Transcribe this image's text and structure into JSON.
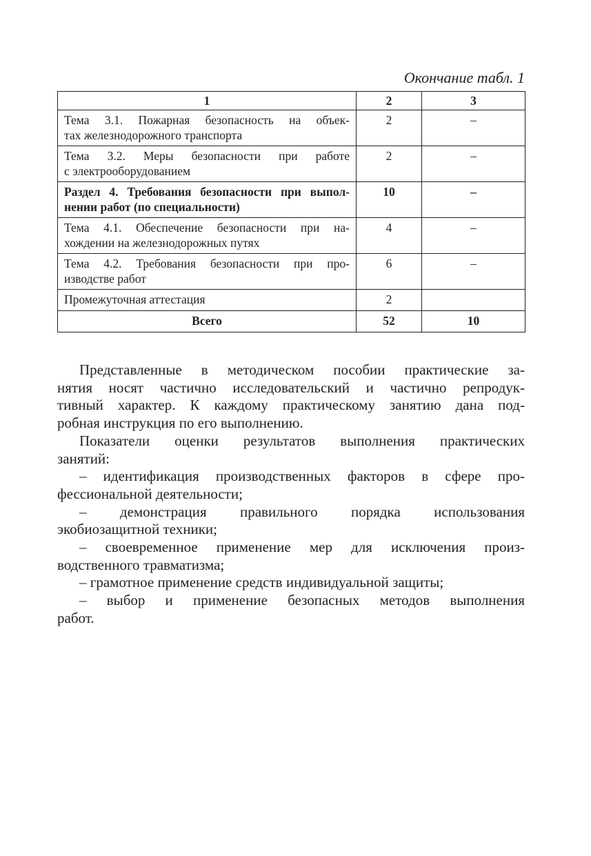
{
  "caption": "Окончание табл. 1",
  "table": {
    "headers": [
      "1",
      "2",
      "3"
    ],
    "rows": [
      {
        "c1": [
          "Тема 3.1. Пожарная безопасность на объек-",
          "тах железнодорожного транспорта"
        ],
        "c2": "2",
        "c3": "–",
        "bold": false
      },
      {
        "c1": [
          "Тема 3.2. Меры безопасности при работе",
          "с электрооборудованием"
        ],
        "c2": "2",
        "c3": "–",
        "bold": false
      },
      {
        "c1": [
          "Раздел 4. Требования безопасности при выпол-",
          "нении работ (по специальности)"
        ],
        "c2": "10",
        "c3": "–",
        "bold": true
      },
      {
        "c1": [
          "Тема 4.1. Обеспечение безопасности при на-",
          "хождении на железнодорожных путях"
        ],
        "c2": "4",
        "c3": "–",
        "bold": false
      },
      {
        "c1": [
          "Тема 4.2. Требования безопасности при про-",
          "изводстве работ"
        ],
        "c2": "6",
        "c3": "–",
        "bold": false
      },
      {
        "c1": [
          "Промежуточная аттестация"
        ],
        "c2": "2",
        "c3": "",
        "bold": false
      }
    ],
    "total": {
      "label": "Всего",
      "c2": "52",
      "c3": "10"
    }
  },
  "paragraphs": [
    [
      "Представленные в методическом пособии практические за-",
      "нятия носят частично исследовательский и частично репродук-",
      "тивный характер. К каждому практическому занятию дана под-",
      "робная инструкция по его выполнению."
    ],
    [
      "Показатели оценки результатов выполнения практических",
      "занятий:"
    ],
    [
      "– идентификация производственных факторов в сфере про-",
      "фессиональной деятельности;"
    ],
    [
      "– демонстрация правильного порядка использования",
      "экобиозащитной техники;"
    ],
    [
      "– своевременное применение мер для исключения произ-",
      "водственного травматизма;"
    ],
    [
      "– грамотное применение средств индивидуальной защиты;"
    ],
    [
      "– выбор и применение безопасных методов выполнения",
      "работ."
    ]
  ]
}
